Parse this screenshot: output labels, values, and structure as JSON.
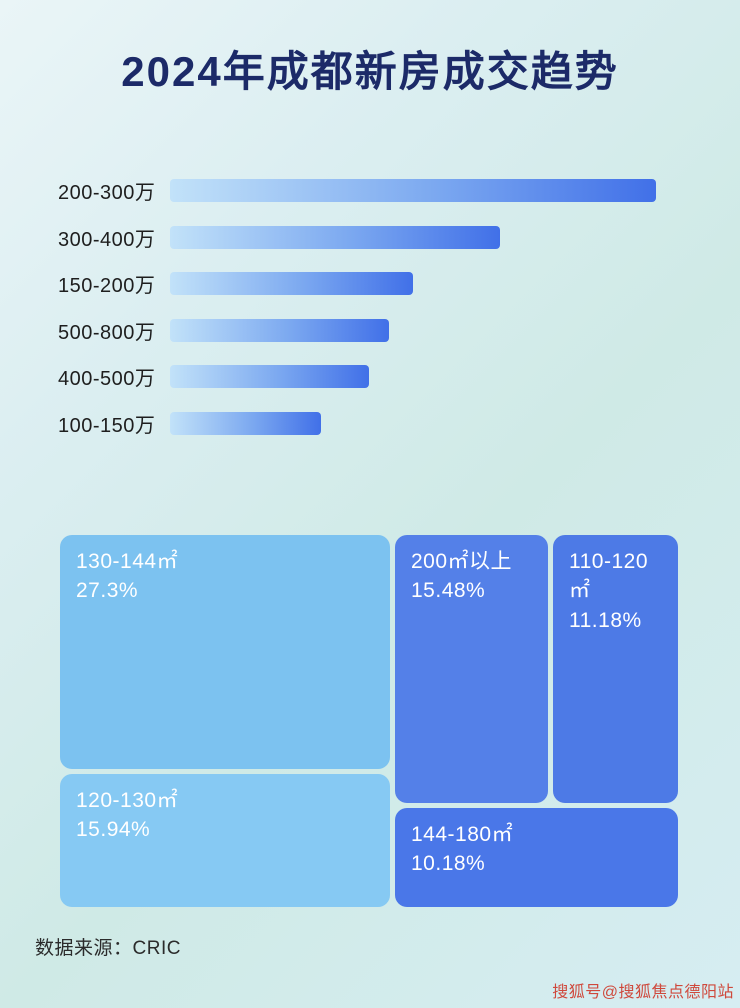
{
  "page": {
    "title": "2024年成都新房成交趋势",
    "source": "数据来源：CRIC",
    "watermark": "搜狐号@搜狐焦点德阳站"
  },
  "colors": {
    "title": "#1c2a68",
    "bar_gradient_start": "#c2e2f9",
    "bar_gradient_end": "#4170e8"
  },
  "chart_data": [
    {
      "type": "bar",
      "title": "2024年成都新房成交趋势（总价段，按成交量排序）",
      "orientation": "horizontal",
      "categories": [
        "200-300万",
        "300-400万",
        "150-200万",
        "500-800万",
        "400-500万",
        "100-150万"
      ],
      "values": [
        100,
        68,
        50,
        45,
        41,
        31
      ],
      "value_note": "无数值标注，数值为相对最长条的估计百分比长度",
      "xlabel": "",
      "ylabel": "",
      "grid": false,
      "legend": false
    },
    {
      "type": "treemap",
      "title": "户型面积段成交占比",
      "items": [
        {
          "label": "130-144㎡",
          "percent": "27.3%",
          "value": 27.3,
          "color": "#7cc2f0"
        },
        {
          "label": "120-130㎡",
          "percent": "15.94%",
          "value": 15.94,
          "color": "#86c9f3"
        },
        {
          "label": "200㎡以上",
          "percent": "15.48%",
          "value": 15.48,
          "color": "#5480e8"
        },
        {
          "label": "110-120㎡",
          "percent": "11.18%",
          "value": 11.18,
          "color": "#4d7ae6"
        },
        {
          "label": "144-180㎡",
          "percent": "10.18%",
          "value": 10.18,
          "color": "#4a77e8"
        }
      ]
    }
  ]
}
